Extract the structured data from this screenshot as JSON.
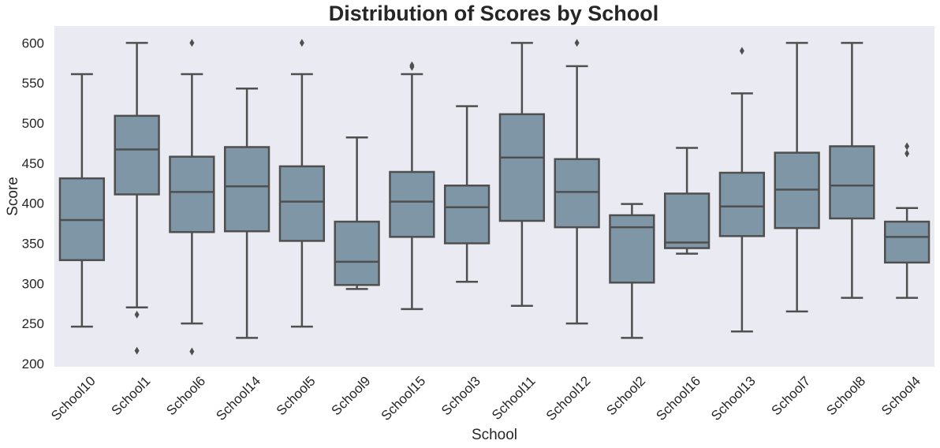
{
  "chart_data": {
    "type": "box",
    "title": "Distribution of Scores by School",
    "xlabel": "School",
    "ylabel": "Score",
    "ylim": [
      196,
      621
    ],
    "yticks": [
      200,
      250,
      300,
      350,
      400,
      450,
      500,
      550,
      600
    ],
    "grid": false,
    "box_color": "#7f96a6",
    "line_color": "#4f4f4f",
    "plot_background": "#eaeaf2",
    "categories": [
      "School10",
      "School1",
      "School6",
      "School14",
      "School5",
      "School9",
      "School15",
      "School3",
      "School11",
      "School12",
      "School2",
      "School16",
      "School13",
      "School7",
      "School8",
      "School4"
    ],
    "boxes": [
      {
        "name": "School10",
        "whislo": 246,
        "q1": 329,
        "median": 379,
        "q3": 431,
        "whishi": 561,
        "fliers": []
      },
      {
        "name": "School1",
        "whislo": 270,
        "q1": 411,
        "median": 467,
        "q3": 509,
        "whishi": 600,
        "fliers": [
          261,
          216
        ]
      },
      {
        "name": "School6",
        "whislo": 250,
        "q1": 364,
        "median": 414,
        "q3": 458,
        "whishi": 561,
        "fliers": [
          600,
          215
        ]
      },
      {
        "name": "School14",
        "whislo": 232,
        "q1": 365,
        "median": 421,
        "q3": 470,
        "whishi": 543,
        "fliers": []
      },
      {
        "name": "School5",
        "whislo": 246,
        "q1": 353,
        "median": 402,
        "q3": 446,
        "whishi": 561,
        "fliers": [
          600
        ]
      },
      {
        "name": "School9",
        "whislo": 293,
        "q1": 298,
        "median": 327,
        "q3": 377,
        "whishi": 482,
        "fliers": []
      },
      {
        "name": "School15",
        "whislo": 268,
        "q1": 358,
        "median": 402,
        "q3": 439,
        "whishi": 561,
        "fliers": [
          572,
          570
        ]
      },
      {
        "name": "School3",
        "whislo": 302,
        "q1": 350,
        "median": 395,
        "q3": 422,
        "whishi": 521,
        "fliers": []
      },
      {
        "name": "School11",
        "whislo": 272,
        "q1": 378,
        "median": 457,
        "q3": 511,
        "whishi": 600,
        "fliers": []
      },
      {
        "name": "School12",
        "whislo": 250,
        "q1": 370,
        "median": 414,
        "q3": 455,
        "whishi": 571,
        "fliers": [
          600
        ]
      },
      {
        "name": "School2",
        "whislo": 232,
        "q1": 301,
        "median": 370,
        "q3": 385,
        "whishi": 399,
        "fliers": []
      },
      {
        "name": "School16",
        "whislo": 337,
        "q1": 344,
        "median": 351,
        "q3": 412,
        "whishi": 469,
        "fliers": []
      },
      {
        "name": "School13",
        "whislo": 240,
        "q1": 359,
        "median": 396,
        "q3": 438,
        "whishi": 537,
        "fliers": [
          590
        ]
      },
      {
        "name": "School7",
        "whislo": 265,
        "q1": 369,
        "median": 417,
        "q3": 463,
        "whishi": 600,
        "fliers": []
      },
      {
        "name": "School8",
        "whislo": 282,
        "q1": 381,
        "median": 422,
        "q3": 471,
        "whishi": 600,
        "fliers": []
      },
      {
        "name": "School4",
        "whislo": 282,
        "q1": 326,
        "median": 358,
        "q3": 377,
        "whishi": 394,
        "fliers": [
          471,
          462
        ]
      }
    ]
  }
}
